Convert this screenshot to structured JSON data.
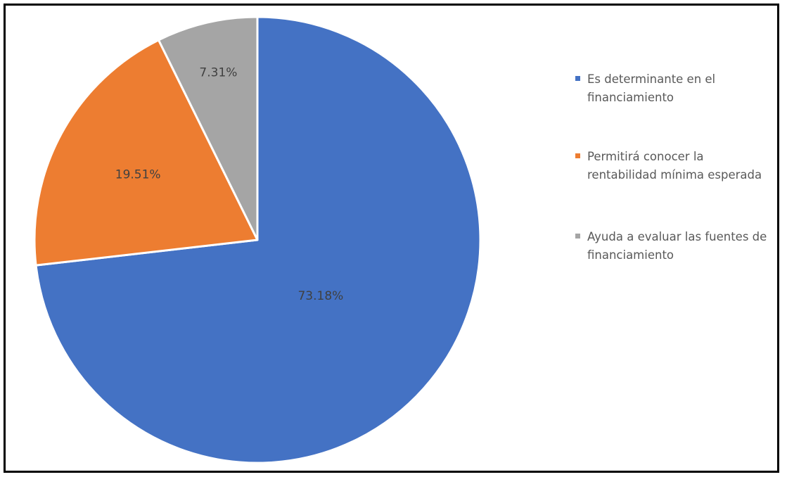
{
  "chart_data": {
    "type": "pie",
    "series": [
      {
        "values": [
          73.18,
          19.51,
          7.31
        ],
        "labels": [
          "73.18%",
          "19.51%",
          "7.31%"
        ]
      }
    ],
    "categories": [
      "Es determinante en el financiamiento",
      "Permitirá conocer la rentabilidad mínima esperada",
      "Ayuda a evaluar las fuentes de financiamiento"
    ],
    "colors": [
      "#4472C4",
      "#ED7D31",
      "#A5A5A5"
    ],
    "legend_position": "right",
    "start_angle": "top, clockwise"
  }
}
